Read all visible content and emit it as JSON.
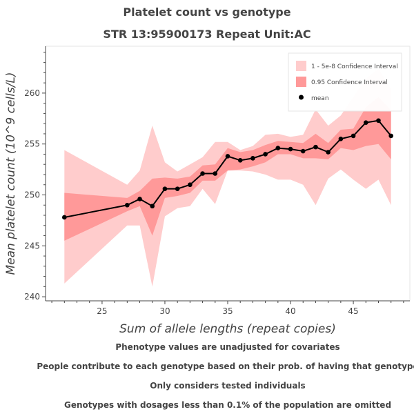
{
  "title": "Platelet count vs genotype",
  "subtitle": "STR 13:95900173 Repeat Unit:AC",
  "notes": [
    "Phenotype values are unadjusted for covariates",
    "People contribute to each genotype based on their prob. of having that genotype",
    "Only considers tested individuals",
    "Genotypes with dosages less than 0.1% of the population are omitted"
  ],
  "chart_data": {
    "type": "line",
    "xlabel": "Sum of allele lengths (repeat copies)",
    "ylabel": "Mean platelet count (10^9 cells/L)",
    "xlim": [
      20.5,
      49.5
    ],
    "ylim": [
      239.6,
      264.6
    ],
    "xticks": [
      25,
      30,
      35,
      40,
      45
    ],
    "yticks": [
      240,
      245,
      250,
      255,
      260
    ],
    "grid": false,
    "legend_position": "top-right",
    "legend": [
      {
        "label": "1 - 5e-8 Confidence Interval",
        "color": "#ffcccc"
      },
      {
        "label": "0.95 Confidence Interval",
        "color": "#ff9999"
      },
      {
        "label": "mean",
        "color": "#000000"
      }
    ],
    "x": [
      22,
      27,
      28,
      29,
      30,
      31,
      32,
      33,
      34,
      35,
      36,
      37,
      38,
      39,
      40,
      41,
      42,
      43,
      44,
      45,
      46,
      47,
      48
    ],
    "series": [
      {
        "name": "mean",
        "values": [
          247.8,
          249.0,
          249.6,
          248.9,
          250.6,
          250.6,
          251.0,
          252.1,
          252.1,
          253.8,
          253.4,
          253.6,
          254.0,
          254.6,
          254.5,
          254.3,
          254.7,
          254.2,
          255.5,
          255.8,
          257.1,
          257.3,
          255.8
        ]
      },
      {
        "name": "0.95 Confidence Interval",
        "lower": [
          245.5,
          248.4,
          248.9,
          246.0,
          249.7,
          249.9,
          250.2,
          251.4,
          251.4,
          252.4,
          252.5,
          252.8,
          253.2,
          254.0,
          254.0,
          253.6,
          253.6,
          253.5,
          254.6,
          254.4,
          254.8,
          255.0,
          253.5
        ],
        "upper": [
          250.2,
          249.7,
          250.4,
          251.6,
          251.7,
          251.6,
          251.8,
          252.9,
          253.0,
          254.6,
          254.2,
          254.4,
          254.9,
          255.3,
          255.2,
          255.1,
          256.0,
          255.1,
          256.4,
          256.5,
          258.6,
          259.6,
          258.3
        ]
      },
      {
        "name": "1 - 5e-8 Confidence Interval",
        "lower": [
          241.3,
          247.0,
          247.0,
          241.0,
          247.9,
          248.7,
          248.9,
          250.6,
          249.1,
          252.4,
          252.4,
          252.3,
          252.0,
          251.5,
          251.5,
          251.0,
          249.0,
          251.6,
          252.5,
          251.5,
          250.6,
          251.5,
          249.0
        ]
      },
      {
        "name": "1 - 5e-8 Confidence Interval (upper)",
        "upper": [
          254.4,
          251.0,
          252.4,
          256.8,
          253.2,
          252.3,
          253.0,
          253.7,
          255.2,
          255.2,
          254.4,
          254.8,
          255.9,
          256.0,
          255.7,
          255.9,
          258.4,
          256.8,
          257.8,
          259.6,
          261.4,
          262.4,
          260.4
        ]
      }
    ]
  }
}
